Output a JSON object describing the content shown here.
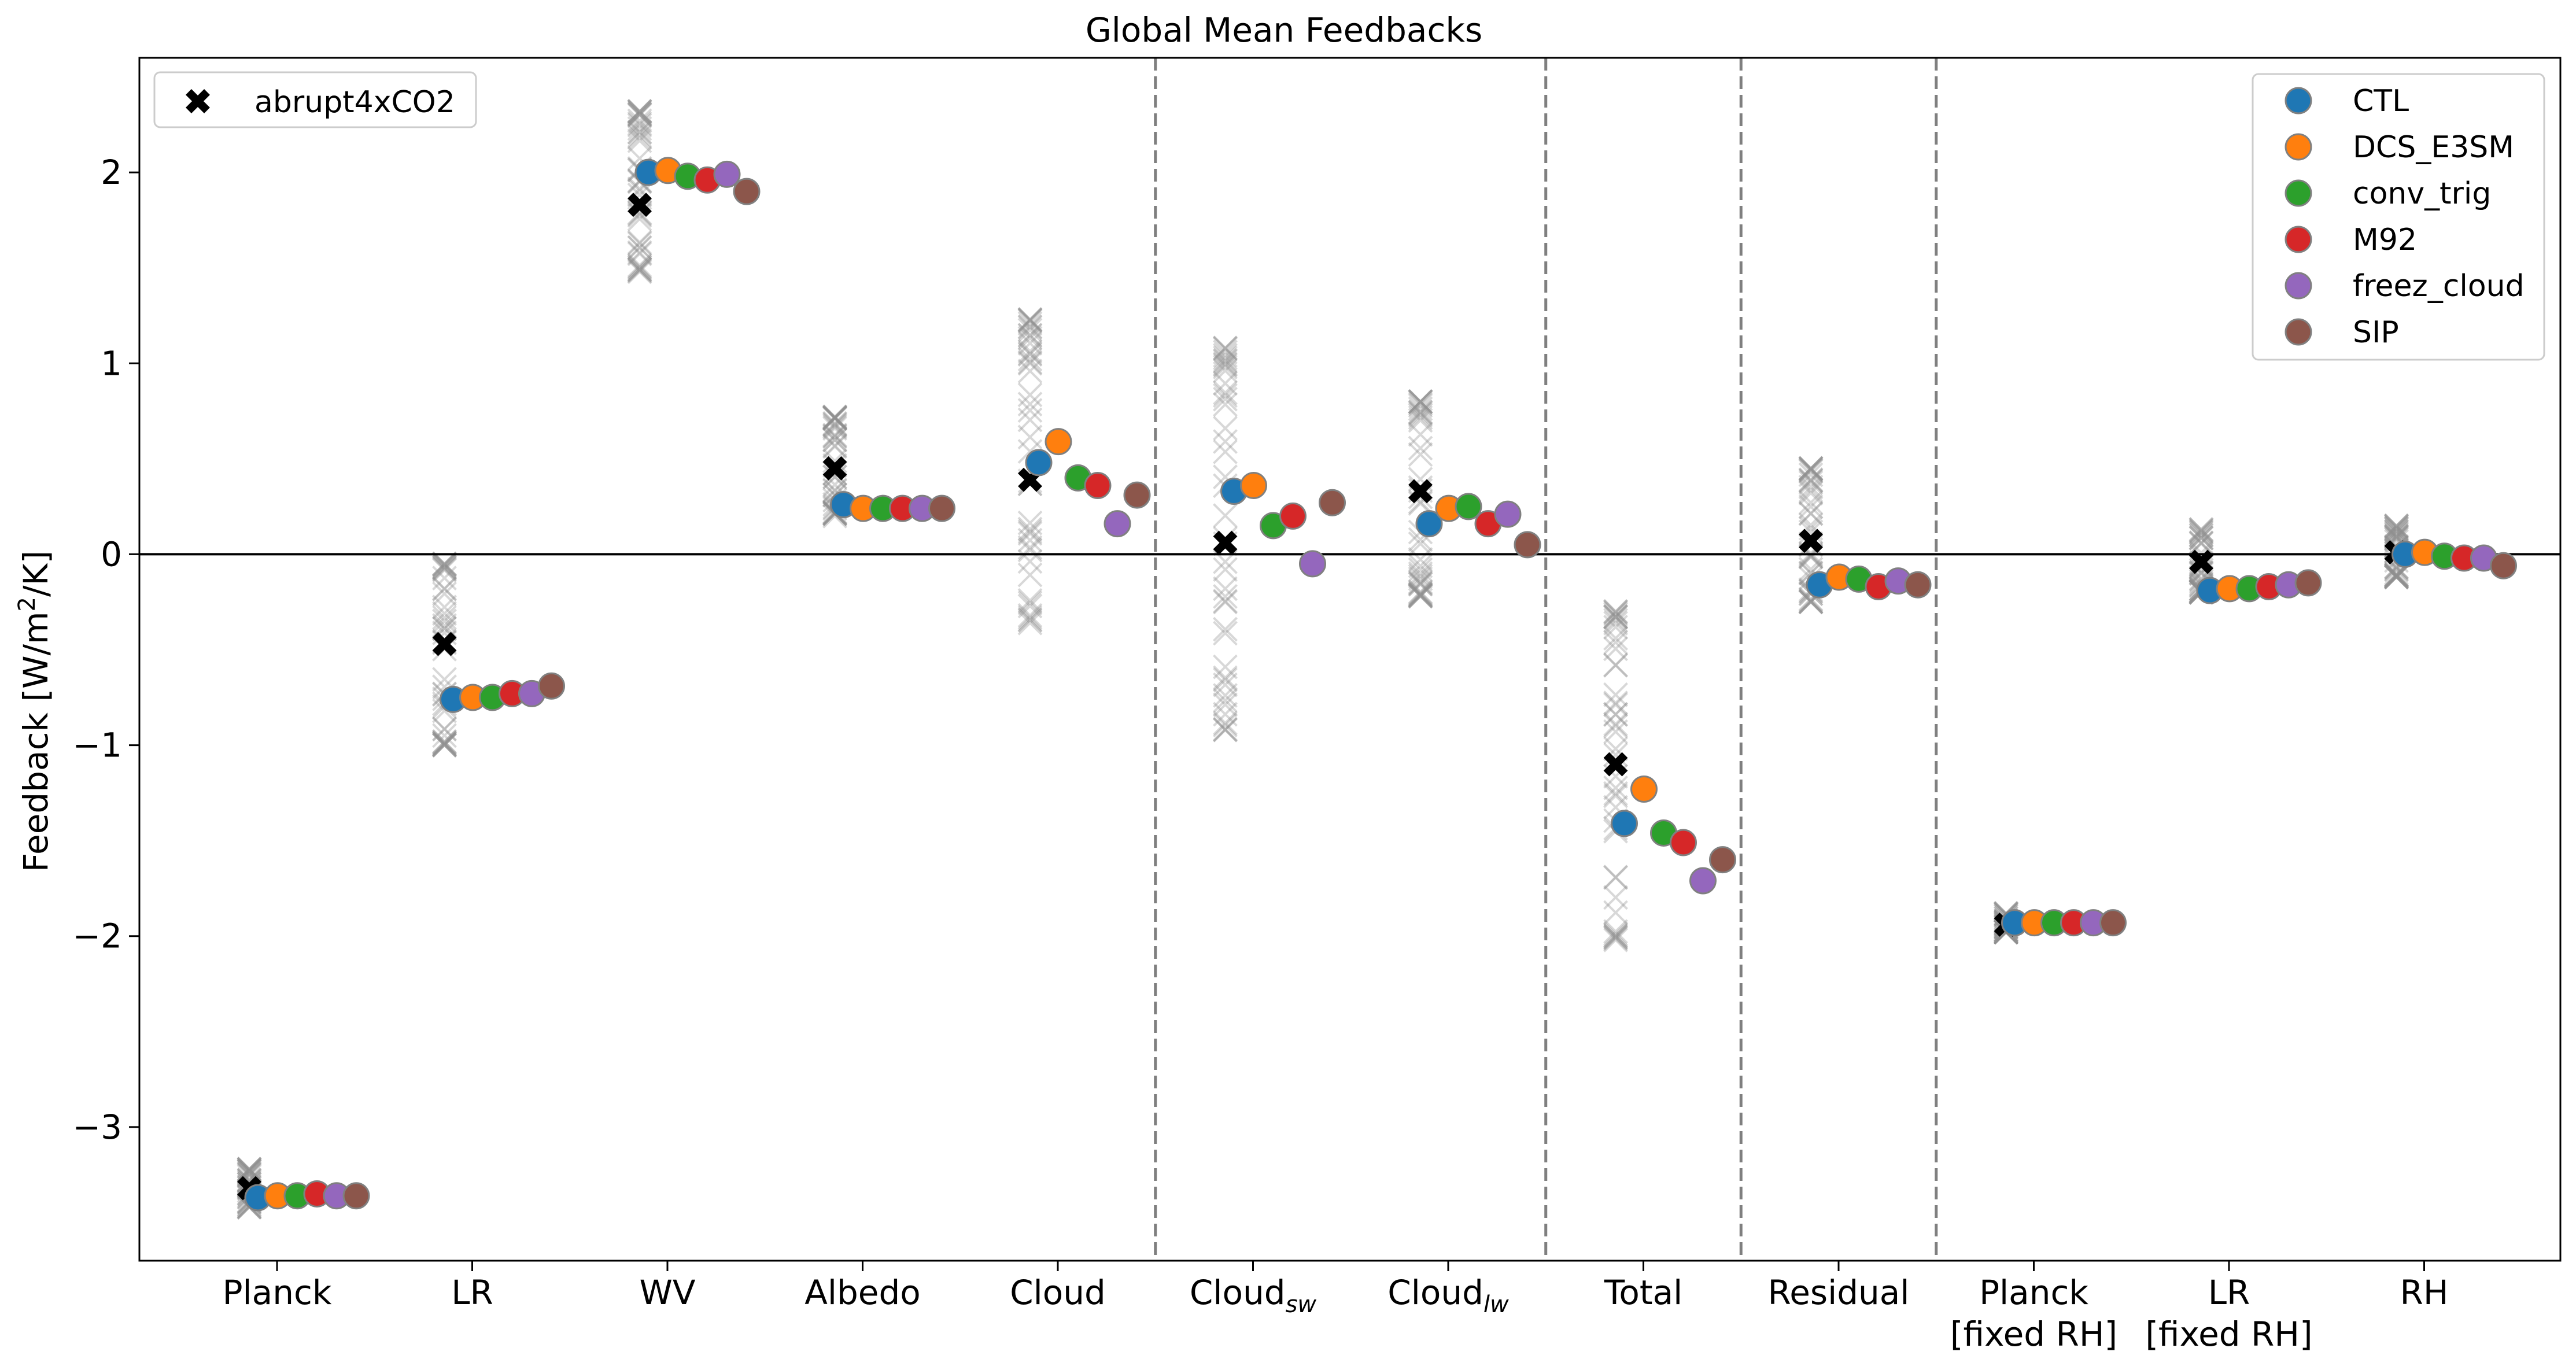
{
  "chart_data": {
    "type": "scatter",
    "title": "Global Mean Feedbacks",
    "ylabel": "Feedback [W/m²/K]",
    "ylabel_parts": {
      "prefix": "Feedback [W/m",
      "sup": "2",
      "suffix": "/K]"
    },
    "xlabel": "",
    "ylim": [
      -3.7,
      2.6
    ],
    "yticks": [
      -3,
      -2,
      -1,
      0,
      1,
      2
    ],
    "ytick_labels": [
      "−3",
      "−2",
      "−1",
      "0",
      "1",
      "2"
    ],
    "categories": [
      {
        "lines": [
          "Planck"
        ]
      },
      {
        "lines": [
          "LR"
        ]
      },
      {
        "lines": [
          "WV"
        ]
      },
      {
        "lines": [
          "Albedo"
        ]
      },
      {
        "lines": [
          "Cloud"
        ]
      },
      {
        "base": "Cloud",
        "sub": "sw"
      },
      {
        "base": "Cloud",
        "sub": "lw"
      },
      {
        "lines": [
          "Total"
        ]
      },
      {
        "lines": [
          "Residual"
        ]
      },
      {
        "lines": [
          "Planck",
          "[fixed RH]"
        ]
      },
      {
        "lines": [
          "LR",
          "[fixed RH]"
        ]
      },
      {
        "lines": [
          "RH"
        ]
      }
    ],
    "separators_after_index": [
      4,
      6,
      7,
      8
    ],
    "zero_line": true,
    "legend_ensemble": {
      "label": "abrupt4xCO2",
      "position": "top-left"
    },
    "legend_series": {
      "position": "top-right"
    },
    "ensemble_ranges": [
      [
        -3.42,
        -3.22
      ],
      [
        -1.0,
        -0.05
      ],
      [
        1.48,
        2.32
      ],
      [
        0.2,
        0.72
      ],
      [
        -0.36,
        1.23
      ],
      [
        -0.92,
        1.08
      ],
      [
        -0.22,
        0.8
      ],
      [
        -2.02,
        -0.3
      ],
      [
        -0.25,
        0.45
      ],
      [
        -1.98,
        -1.88
      ],
      [
        -0.2,
        0.13
      ],
      [
        -0.12,
        0.15
      ]
    ],
    "abrupt4xCO2": [
      -3.32,
      -0.47,
      1.83,
      0.45,
      0.39,
      0.06,
      0.33,
      -1.1,
      0.07,
      -1.94,
      -0.04,
      0.01
    ],
    "series": [
      {
        "name": "CTL",
        "color": "#1f77b4",
        "values": [
          -3.37,
          -0.76,
          2.0,
          0.26,
          0.48,
          0.33,
          0.16,
          -1.41,
          -0.16,
          -1.93,
          -0.19,
          0.0
        ]
      },
      {
        "name": "DCS_E3SM",
        "color": "#ff7f0e",
        "values": [
          -3.36,
          -0.75,
          2.01,
          0.24,
          0.59,
          0.36,
          0.24,
          -1.23,
          -0.12,
          -1.93,
          -0.18,
          0.01
        ]
      },
      {
        "name": "conv_trig",
        "color": "#2ca02c",
        "values": [
          -3.36,
          -0.75,
          1.98,
          0.24,
          0.4,
          0.15,
          0.25,
          -1.46,
          -0.13,
          -1.93,
          -0.18,
          -0.01
        ]
      },
      {
        "name": "M92",
        "color": "#d62728",
        "values": [
          -3.35,
          -0.73,
          1.96,
          0.24,
          0.36,
          0.2,
          0.16,
          -1.51,
          -0.17,
          -1.93,
          -0.17,
          -0.02
        ]
      },
      {
        "name": "freez_cloud",
        "color": "#9467bd",
        "values": [
          -3.36,
          -0.73,
          1.99,
          0.24,
          0.16,
          -0.05,
          0.21,
          -1.71,
          -0.14,
          -1.93,
          -0.16,
          -0.02
        ]
      },
      {
        "name": "SIP",
        "color": "#8c564b",
        "values": [
          -3.36,
          -0.69,
          1.9,
          0.24,
          0.31,
          0.27,
          0.05,
          -1.6,
          -0.16,
          -1.93,
          -0.15,
          -0.06
        ]
      }
    ]
  }
}
